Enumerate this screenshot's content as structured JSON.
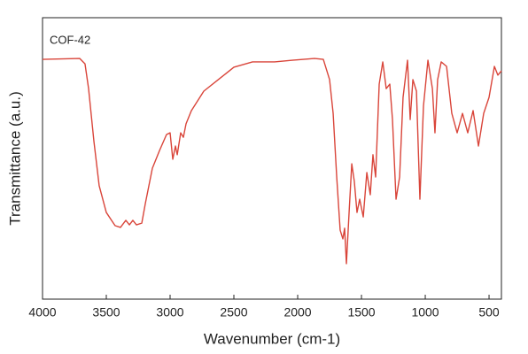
{
  "chart_data": {
    "type": "line",
    "annotation": "COF-42",
    "x_label": "Wavenumber (cm-1)",
    "y_label": "Transmittance  (a.u.)",
    "xlim": [
      4000,
      403
    ],
    "ylim": [
      0,
      100
    ],
    "x_reversed": true,
    "xticks": [
      4000,
      3500,
      3000,
      2500,
      2000,
      1500,
      1000,
      500
    ],
    "x": [
      4000,
      3708,
      3667,
      3639,
      3597,
      3556,
      3500,
      3431,
      3389,
      3347,
      3319,
      3292,
      3264,
      3222,
      3194,
      3139,
      3083,
      3028,
      3000,
      2979,
      2958,
      2944,
      2917,
      2896,
      2875,
      2833,
      2736,
      2597,
      2500,
      2354,
      2181,
      2042,
      1868,
      1799,
      1750,
      1722,
      1694,
      1667,
      1646,
      1632,
      1618,
      1597,
      1576,
      1556,
      1535,
      1514,
      1486,
      1458,
      1431,
      1410,
      1389,
      1361,
      1333,
      1306,
      1278,
      1257,
      1229,
      1201,
      1174,
      1139,
      1118,
      1097,
      1069,
      1042,
      1014,
      979,
      944,
      924,
      903,
      875,
      833,
      792,
      750,
      708,
      667,
      625,
      583,
      542,
      500,
      458,
      431,
      403
    ],
    "series": [
      {
        "color": "#d9453a",
        "values": [
          85.2,
          85.5,
          83.6,
          74.8,
          56.0,
          40.3,
          30.8,
          26.1,
          25.5,
          28.0,
          26.4,
          28.0,
          26.4,
          27.0,
          34.0,
          46.5,
          52.8,
          58.5,
          59.1,
          49.7,
          54.4,
          51.3,
          59.1,
          57.5,
          62.3,
          67.0,
          73.9,
          78.9,
          82.4,
          84.3,
          84.3,
          84.9,
          85.5,
          85.2,
          78.0,
          66.0,
          43.4,
          24.5,
          21.4,
          25.2,
          12.6,
          30.8,
          48.1,
          41.8,
          30.8,
          35.5,
          29.2,
          45.0,
          37.1,
          51.3,
          43.4,
          76.4,
          84.3,
          74.8,
          76.4,
          63.8,
          35.5,
          43.4,
          71.7,
          84.9,
          63.8,
          78.0,
          73.9,
          35.5,
          68.6,
          84.9,
          74.8,
          59.1,
          78.0,
          84.3,
          82.7,
          66.0,
          59.1,
          66.0,
          59.1,
          67.0,
          54.4,
          66.0,
          71.7,
          82.7,
          79.6,
          81.1
        ]
      }
    ]
  }
}
